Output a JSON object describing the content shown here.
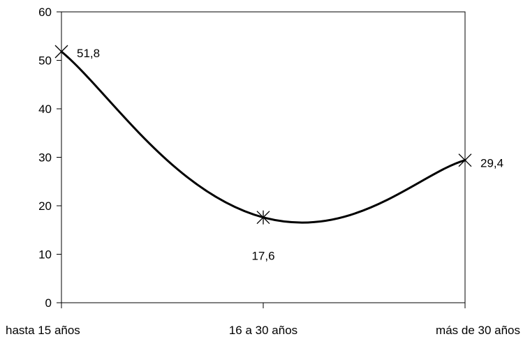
{
  "chart_data": {
    "type": "line",
    "title": "",
    "xlabel": "",
    "ylabel": "",
    "categories": [
      "hasta 15 años",
      "16 a 30 años",
      "más de 30 años"
    ],
    "series": [
      {
        "values": [
          51.8,
          17.6,
          29.4
        ],
        "color": "#000000"
      }
    ],
    "data_labels": [
      "51,8",
      "17,6",
      "29,4"
    ],
    "y_ticks": [
      0,
      10,
      20,
      30,
      40,
      50,
      60
    ],
    "ylim": [
      0,
      60
    ],
    "grid": false,
    "legend": "none",
    "line_style": "smoothed",
    "marker_style": [
      "cross",
      "asterisk",
      "cross"
    ]
  }
}
